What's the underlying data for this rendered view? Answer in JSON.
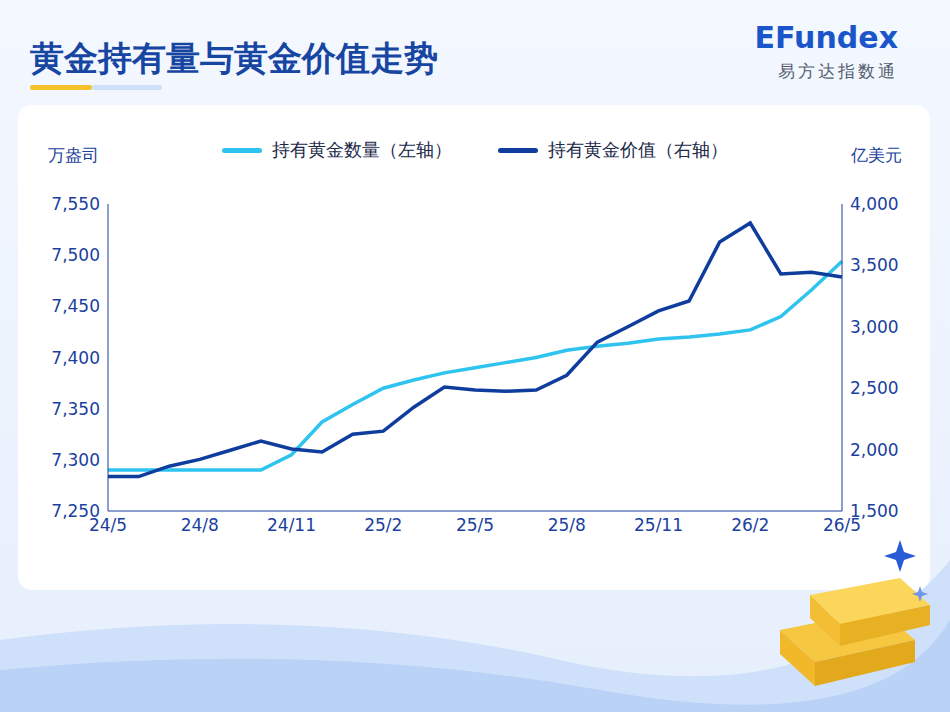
{
  "chart_data": {
    "type": "line",
    "title": "黄金持有量与黄金价值走势",
    "logo_text": "EFundex",
    "logo_subtitle": "易方达指数通",
    "ylabel": "万盎司",
    "y2label": "亿美元",
    "legend": "top",
    "grid": false,
    "categories": [
      "24/5",
      null,
      null,
      "24/8",
      null,
      null,
      "24/11",
      null,
      null,
      "25/2",
      null,
      null,
      "25/5",
      null,
      null,
      "25/8",
      null,
      null,
      "25/11",
      null,
      null,
      "26/2",
      null,
      null,
      "26/5"
    ],
    "ylim": [
      7250,
      7550
    ],
    "yticks": [
      {
        "value": 7250,
        "label": "7,250"
      },
      {
        "value": 7300,
        "label": "7,300"
      },
      {
        "value": 7350,
        "label": "7,350"
      },
      {
        "value": 7400,
        "label": "7,400"
      },
      {
        "value": 7450,
        "label": "7,450"
      },
      {
        "value": 7500,
        "label": "7,500"
      },
      {
        "value": 7550,
        "label": "7,550"
      }
    ],
    "y2lim": [
      1500,
      4000
    ],
    "y2ticks": [
      {
        "value": 1500,
        "label": "1,500"
      },
      {
        "value": 2000,
        "label": "2,000"
      },
      {
        "value": 2500,
        "label": "2,500"
      },
      {
        "value": 3000,
        "label": "3,000"
      },
      {
        "value": 3500,
        "label": "3,500"
      },
      {
        "value": 4000,
        "label": "4,000"
      }
    ],
    "series": [
      {
        "name": "持有黄金数量（左轴）",
        "color": "#2ec4ef",
        "axis": "y",
        "values": [
          7290,
          7290,
          7290,
          7290,
          7290,
          7290,
          7305,
          7337,
          7354,
          7370,
          7378,
          7385,
          7390,
          7395,
          7400,
          7407,
          7411,
          7414,
          7418,
          7420,
          7423,
          7427,
          7440,
          7466,
          7494
        ]
      },
      {
        "name": "持有黄金价值（右轴）",
        "color": "#0f3d9e",
        "axis": "y2",
        "values": [
          1780,
          1780,
          1865,
          1920,
          1995,
          2070,
          2005,
          1980,
          2125,
          2150,
          2345,
          2510,
          2485,
          2475,
          2485,
          2605,
          2875,
          3000,
          3130,
          3210,
          3690,
          3845,
          3430,
          3445,
          3405
        ]
      }
    ]
  }
}
